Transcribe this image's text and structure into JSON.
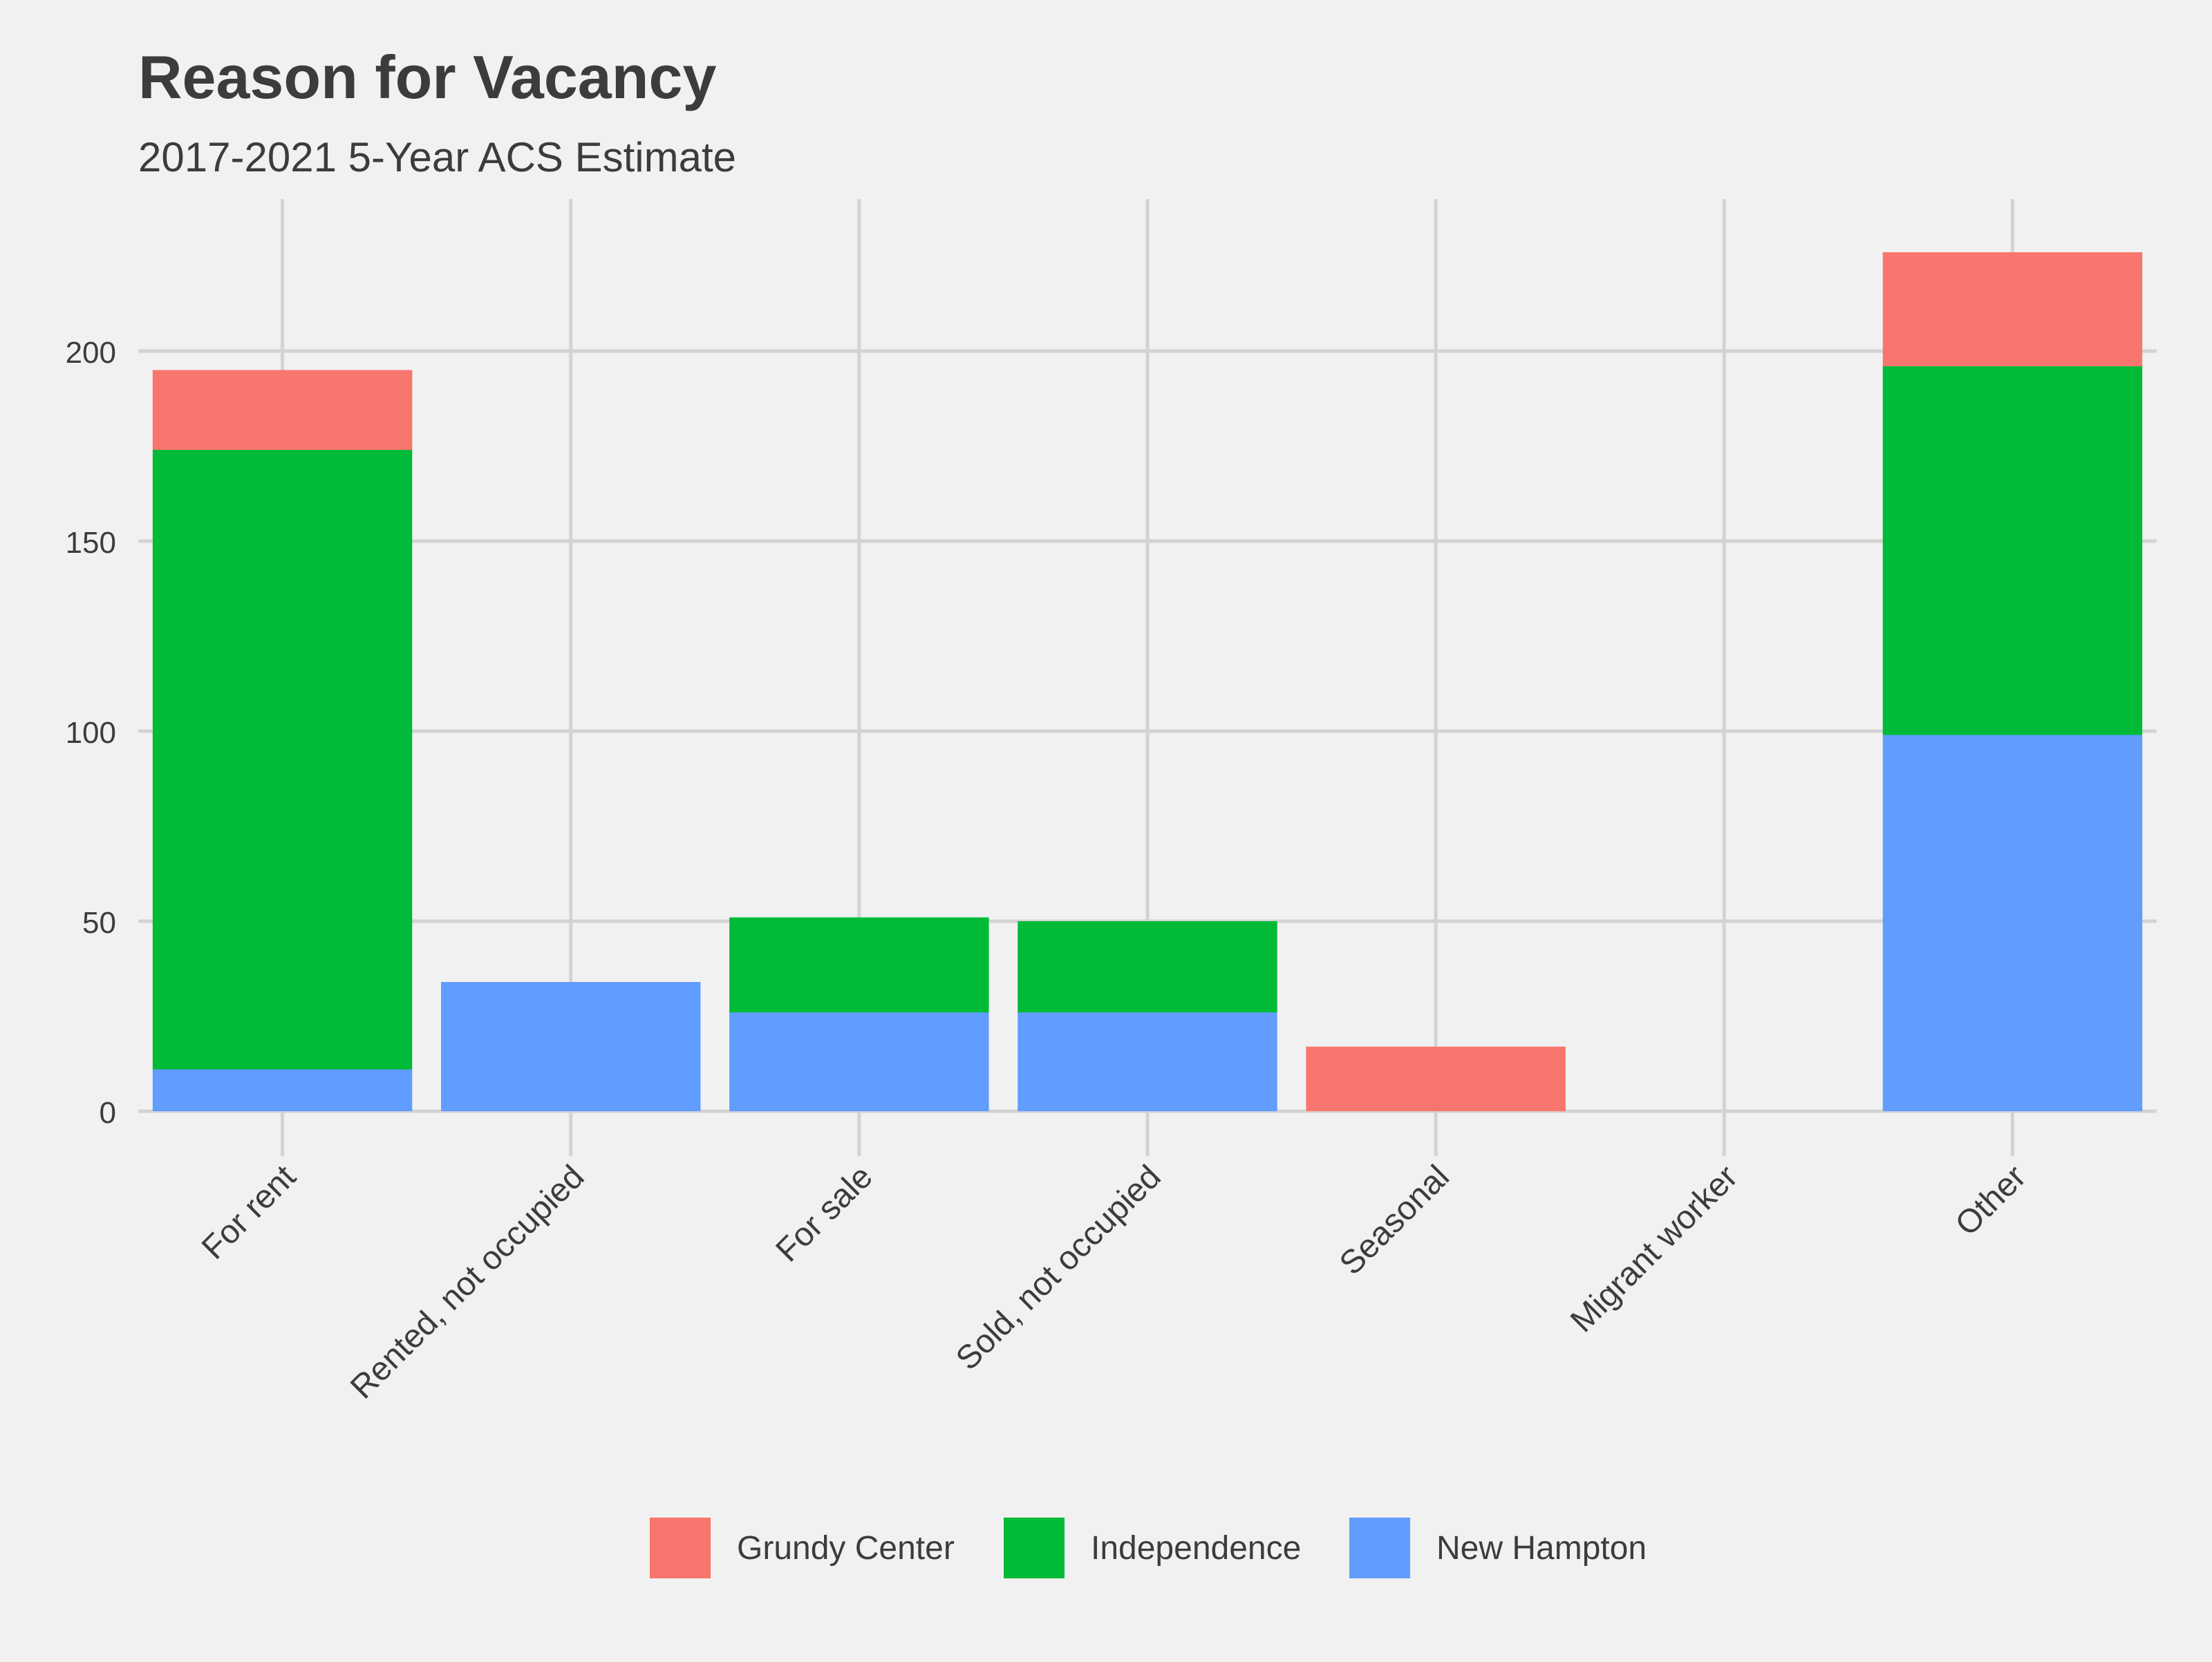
{
  "chart_data": {
    "type": "bar",
    "stacked": true,
    "title": "Reason for Vacancy",
    "subtitle": "2017-2021 5-Year ACS Estimate",
    "xlabel": "",
    "ylabel": "",
    "ylim": [
      0,
      240
    ],
    "yticks": [
      0,
      50,
      100,
      150,
      200
    ],
    "grid": true,
    "legend_position": "bottom",
    "categories": [
      "For rent",
      "Rented, not occupied",
      "For sale",
      "Sold, not occupied",
      "Seasonal",
      "Migrant worker",
      "Other"
    ],
    "series": [
      {
        "name": "New Hampton",
        "color": "#619CFF",
        "values": [
          11,
          34,
          26,
          26,
          0,
          0,
          99
        ]
      },
      {
        "name": "Independence",
        "color": "#00BA38",
        "values": [
          163,
          0,
          25,
          24,
          0,
          0,
          97
        ]
      },
      {
        "name": "Grundy Center",
        "color": "#F8766D",
        "values": [
          21,
          0,
          0,
          0,
          17,
          0,
          30
        ]
      }
    ],
    "legend_order": [
      "Grundy Center",
      "Independence",
      "New Hampton"
    ]
  },
  "colors": {
    "background": "#F1F1F1",
    "grid": "#D3D3D3",
    "text": "#3C3C3C"
  }
}
